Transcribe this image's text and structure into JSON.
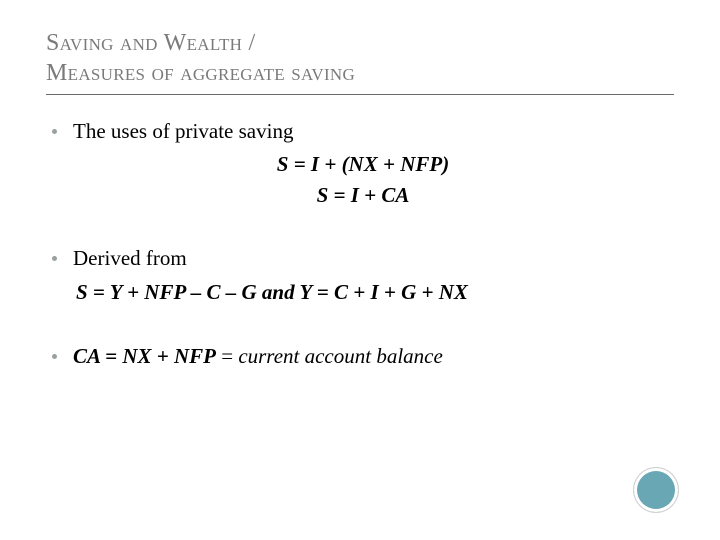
{
  "title": {
    "line1": "Saving and Wealth /",
    "line2": "Measures of aggregate saving"
  },
  "bullets": {
    "b1": "The uses of private saving",
    "eq1": "S = I + (NX + NFP)",
    "eq2": "S = I + CA",
    "b2": "Derived from",
    "eq3": "S = Y + NFP – C – G and Y = C + I + G + NX",
    "b3_bold": "CA = NX + NFP",
    "b3_eq": " = ",
    "b3_tail": "current account balance"
  },
  "colors": {
    "title": "#7a7a7a",
    "rule": "#6a6a6a",
    "bullet_dot": "#9aa0a0",
    "text": "#000000",
    "circle": "#6aa7b5",
    "background": "#ffffff"
  }
}
